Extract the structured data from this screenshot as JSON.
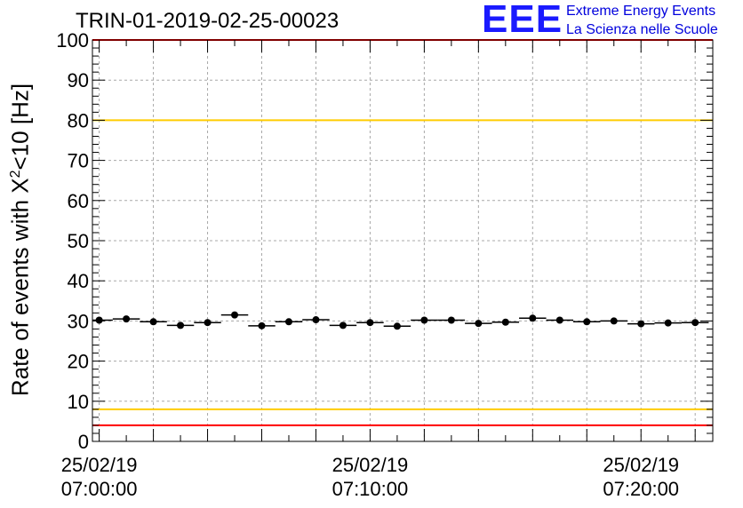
{
  "title": "TRIN-01-2019-02-25-00023",
  "logo": {
    "mark": "EEE",
    "line1": "Extreme Energy Events",
    "line2": "La Scienza nelle Scuole"
  },
  "chart_data": {
    "type": "scatter",
    "title": "TRIN-01-2019-02-25-00023",
    "ylabel_pre": "Rate of events with X",
    "ylabel_sup": "2",
    "ylabel_post": "<10 [Hz]",
    "ylim": [
      0,
      100
    ],
    "yticks": [
      0,
      10,
      20,
      30,
      40,
      50,
      60,
      70,
      80,
      90,
      100
    ],
    "xlim_min": [
      -0.25,
      22.65
    ],
    "xticks": [
      {
        "min": 0,
        "date": "25/02/19",
        "time": "07:00:00"
      },
      {
        "min": 10,
        "date": "25/02/19",
        "time": "07:10:00"
      },
      {
        "min": 20,
        "date": "25/02/19",
        "time": "07:20:00"
      }
    ],
    "grid": true,
    "bin_width_min": 1,
    "series": [
      {
        "x_min": [
          0,
          1,
          2,
          3,
          4,
          5,
          6,
          7,
          8,
          9,
          10,
          11,
          12,
          13,
          14,
          15,
          16,
          17,
          18,
          19,
          20,
          21,
          22
        ],
        "values": [
          30.2,
          30.5,
          29.8,
          28.9,
          29.6,
          31.5,
          28.8,
          29.8,
          30.3,
          28.9,
          29.6,
          28.7,
          30.2,
          30.2,
          29.4,
          29.7,
          30.7,
          30.2,
          29.8,
          30.0,
          29.3,
          29.5,
          29.6
        ],
        "color": "#000000"
      }
    ],
    "reference_lines": [
      {
        "y": 100,
        "color": "#ff0000"
      },
      {
        "y": 80,
        "color": "#ffcc00"
      },
      {
        "y": 8,
        "color": "#ffcc00"
      },
      {
        "y": 4,
        "color": "#ff0000"
      }
    ]
  }
}
